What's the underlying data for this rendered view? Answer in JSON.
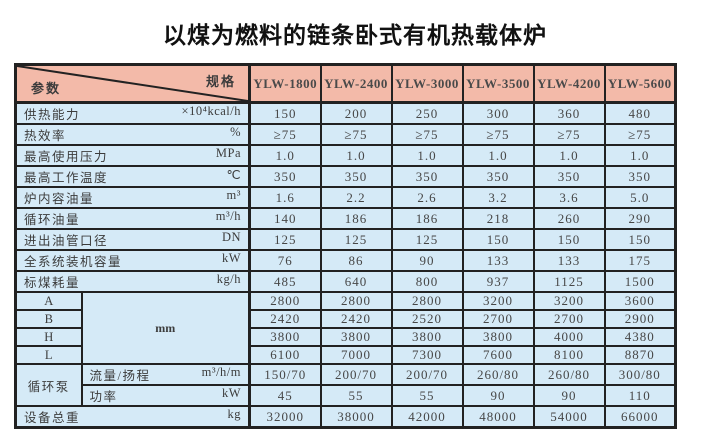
{
  "title": "以煤为燃料的链条卧式有机热载体炉",
  "colors": {
    "header_bg": "#f3baa9",
    "body_bg": "#d5eaf7",
    "border": "#222222"
  },
  "table": {
    "corner": {
      "spec": "规格",
      "param": "参数"
    },
    "models": [
      "YLW-1800",
      "YLW-2400",
      "YLW-3000",
      "YLW-3500",
      "YLW-4200",
      "YLW-5600"
    ],
    "rows": [
      {
        "label": "供热能力",
        "unit": "×10⁴kcal/h",
        "values": [
          "150",
          "200",
          "250",
          "300",
          "360",
          "480"
        ]
      },
      {
        "label": "热效率",
        "unit": "%",
        "values": [
          "≥75",
          "≥75",
          "≥75",
          "≥75",
          "≥75",
          "≥75"
        ]
      },
      {
        "label": "最高使用压力",
        "unit": "MPa",
        "values": [
          "1.0",
          "1.0",
          "1.0",
          "1.0",
          "1.0",
          "1.0"
        ]
      },
      {
        "label": "最高工作温度",
        "unit": "℃",
        "values": [
          "350",
          "350",
          "350",
          "350",
          "350",
          "350"
        ]
      },
      {
        "label": "炉内容油量",
        "unit": "m³",
        "values": [
          "1.6",
          "2.2",
          "2.6",
          "3.2",
          "3.6",
          "5.0"
        ]
      },
      {
        "label": "循环油量",
        "unit": "m³/h",
        "values": [
          "140",
          "186",
          "186",
          "218",
          "260",
          "290"
        ]
      },
      {
        "label": "进出油管口径",
        "unit": "DN",
        "values": [
          "125",
          "125",
          "125",
          "150",
          "150",
          "150"
        ]
      },
      {
        "label": "全系统装机容量",
        "unit": "kW",
        "values": [
          "76",
          "86",
          "90",
          "133",
          "133",
          "175"
        ]
      },
      {
        "label": "标煤耗量",
        "unit": "kg/h",
        "values": [
          "485",
          "640",
          "800",
          "937",
          "1125",
          "1500"
        ]
      }
    ],
    "dimensions": {
      "unit": "mm",
      "rows": [
        {
          "label": "A",
          "values": [
            "2800",
            "2800",
            "2800",
            "3200",
            "3200",
            "3600"
          ]
        },
        {
          "label": "B",
          "values": [
            "2420",
            "2420",
            "2520",
            "2700",
            "2700",
            "2900"
          ]
        },
        {
          "label": "H",
          "values": [
            "3800",
            "3800",
            "3800",
            "3800",
            "4000",
            "4380"
          ]
        },
        {
          "label": "L",
          "values": [
            "6100",
            "7000",
            "7300",
            "7600",
            "8100",
            "8870"
          ]
        }
      ]
    },
    "pump": {
      "label": "循环泵",
      "rows": [
        {
          "label": "流量/扬程",
          "unit": "m³/h/m",
          "values": [
            "150/70",
            "200/70",
            "200/70",
            "260/80",
            "260/80",
            "300/80"
          ]
        },
        {
          "label": "功率",
          "unit": "kW",
          "values": [
            "45",
            "55",
            "55",
            "90",
            "90",
            "110"
          ]
        }
      ]
    },
    "total": {
      "label": "设备总重",
      "unit": "kg",
      "values": [
        "32000",
        "38000",
        "42000",
        "48000",
        "54000",
        "66000"
      ]
    }
  }
}
